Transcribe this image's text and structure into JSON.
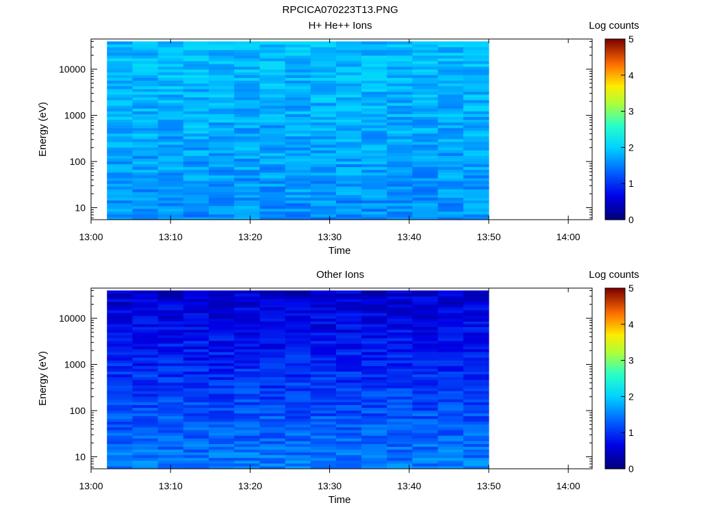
{
  "figure_title": "RPCICA070223T13.PNG",
  "chart_data": [
    {
      "type": "heatmap",
      "title": "H+ He++ Ions",
      "xlabel": "Time",
      "ylabel": "Energy (eV)",
      "x_ticks": [
        "13:00",
        "13:10",
        "13:20",
        "13:30",
        "13:40",
        "13:50",
        "14:00"
      ],
      "y_ticks": [
        "10",
        "100",
        "1000",
        "10000"
      ],
      "y_scale": "log",
      "x_range": [
        "13:00",
        "14:03"
      ],
      "y_range": [
        5.5,
        45000
      ],
      "data_time_range": [
        "13:02",
        "13:50"
      ],
      "time_bins": 15,
      "colorbar": {
        "label": "Log counts",
        "ticks": [
          "0",
          "1",
          "2",
          "3",
          "4",
          "5"
        ],
        "range": [
          0,
          5
        ]
      },
      "approx_log_counts": {
        "low_energy_band": 1.6,
        "high_energy_band": 1.9,
        "range": [
          1.1,
          2.1
        ]
      }
    },
    {
      "type": "heatmap",
      "title": "Other Ions",
      "xlabel": "Time",
      "ylabel": "Energy (eV)",
      "x_ticks": [
        "13:00",
        "13:10",
        "13:20",
        "13:30",
        "13:40",
        "13:50",
        "14:00"
      ],
      "y_ticks": [
        "10",
        "100",
        "1000",
        "10000"
      ],
      "y_scale": "log",
      "x_range": [
        "13:00",
        "14:03"
      ],
      "y_range": [
        5.5,
        45000
      ],
      "data_time_range": [
        "13:02",
        "13:50"
      ],
      "time_bins": 15,
      "colorbar": {
        "label": "Log counts",
        "ticks": [
          "0",
          "1",
          "2",
          "3",
          "4",
          "5"
        ],
        "range": [
          0,
          5
        ]
      },
      "approx_log_counts": {
        "low_energy_band": 1.5,
        "high_energy_band": 0.5,
        "range": [
          0.2,
          1.7
        ]
      }
    }
  ]
}
